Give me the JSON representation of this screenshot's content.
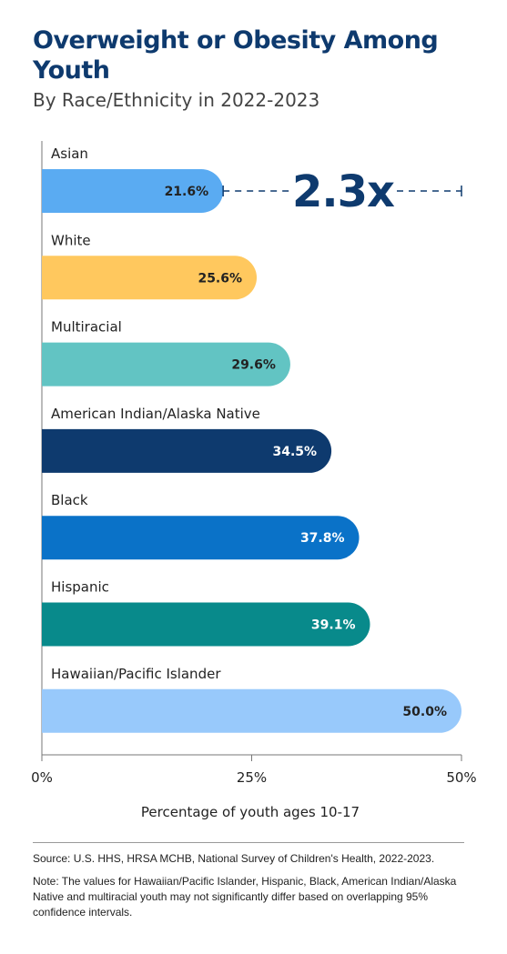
{
  "title": "Overweight or Obesity Among Youth",
  "subtitle": "By Race/Ethnicity in 2022-2023",
  "chart_data": {
    "type": "bar",
    "orientation": "horizontal",
    "title": "Overweight or Obesity Among Youth",
    "subtitle": "By Race/Ethnicity in 2022-2023",
    "xlabel": "Percentage of youth ages 10-17",
    "xlim": [
      0,
      50
    ],
    "xticks": [
      0,
      25,
      50
    ],
    "xtick_labels": [
      "0%",
      "25%",
      "50%"
    ],
    "grid": false,
    "categories": [
      "Asian",
      "White",
      "Multiracial",
      "American Indian/Alaska Native",
      "Black",
      "Hispanic",
      "Hawaiian/Pacific Islander"
    ],
    "values": [
      21.6,
      25.6,
      29.6,
      34.5,
      37.8,
      39.1,
      50.0
    ],
    "value_labels": [
      "21.6%",
      "25.6%",
      "29.6%",
      "34.5%",
      "37.8%",
      "39.1%",
      "50.0%"
    ],
    "colors": [
      "#5aabf2",
      "#ffc85e",
      "#62c4c3",
      "#0e3a6e",
      "#0a72c8",
      "#088a8b",
      "#98c9fb"
    ],
    "label_colors": [
      "#222222",
      "#222222",
      "#222222",
      "#ffffff",
      "#ffffff",
      "#ffffff",
      "#222222"
    ],
    "annotation": {
      "text": "2.3x",
      "from": 21.6,
      "to": 50.0,
      "row": "Asian"
    }
  },
  "footer": {
    "source": "Source:  U.S. HHS, HRSA MCHB, National Survey of Children's Health, 2022-2023.",
    "note": "Note: The values for Hawaiian/Pacific Islander, Hispanic, Black, American Indian/Alaska Native and multiracial youth may not significantly differ based on overlapping 95% confidence intervals."
  }
}
